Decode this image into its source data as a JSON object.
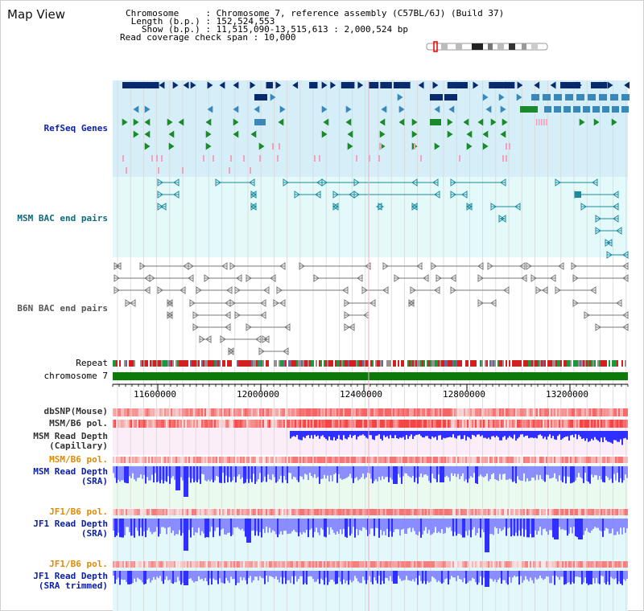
{
  "header": {
    "title": "Map View",
    "chromosome_line": "Chromosome     : Chromosome 7, reference assembly (C57BL/6J) (Build 37)",
    "length_line": " Length (b.p.) : 152,524,553",
    "show_line": "   Show (b.p.) : 11,515,090-13,515,613 : 2,000,524 bp",
    "coverage_line": "Read coverage check span : 10,000"
  },
  "tracks": {
    "refseq": "RefSeq Genes",
    "msm_bac": "MSM BAC end pairs",
    "b6n_bac": "B6N BAC end pairs",
    "repeat": "Repeat",
    "chromosome": "chromosome 7",
    "dbsnp": "dbSNP(Mouse)",
    "msm_b6_pol": "MSM/B6 pol.",
    "msm_depth_cap": "MSM Read Depth\n(Capillary)",
    "msm_b6_pol2": "MSM/B6 pol.",
    "msm_depth_sra": "MSM Read Depth\n(SRA)",
    "jf1_b6_pol": "JF1/B6 pol.",
    "jf1_depth_sra": "JF1 Read Depth\n(SRA)",
    "jf1_b6_pol2": "JF1/B6 pol.",
    "jf1_depth_trim": "JF1 Read Depth\n(SRA trimmed)"
  },
  "axis": {
    "ticks": [
      "11600000",
      "12000000",
      "12400000",
      "12800000",
      "13200000"
    ]
  },
  "colors": {
    "gene_dark": "#0a2a6e",
    "gene_blue": "#3a88b8",
    "gene_green": "#1a8a2a",
    "gene_pink": "#f4a0c0",
    "teal": "#1a8aa0",
    "bac_gray": "#777777",
    "chromosome_green": "#0b7a0b",
    "depth_blue": "#2f2fff",
    "pol_red": "#f03030"
  }
}
